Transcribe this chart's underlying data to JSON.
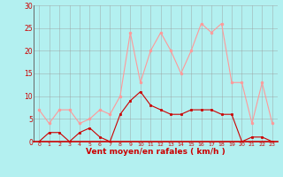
{
  "x": [
    0,
    1,
    2,
    3,
    4,
    5,
    6,
    7,
    8,
    9,
    10,
    11,
    12,
    13,
    14,
    15,
    16,
    17,
    18,
    19,
    20,
    21,
    22,
    23
  ],
  "avg_wind": [
    0,
    2,
    2,
    0,
    2,
    3,
    1,
    0,
    6,
    9,
    11,
    8,
    7,
    6,
    6,
    7,
    7,
    7,
    6,
    6,
    0,
    1,
    1,
    0
  ],
  "gust_wind": [
    7,
    4,
    7,
    7,
    4,
    5,
    7,
    6,
    10,
    24,
    13,
    20,
    24,
    20,
    15,
    20,
    26,
    24,
    26,
    13,
    13,
    4,
    13,
    4
  ],
  "avg_color": "#cc0000",
  "gust_color": "#ff9999",
  "bg_color": "#b3f0f0",
  "grid_color": "#999999",
  "xlabel": "Vent moyen/en rafales ( km/h )",
  "xlabel_color": "#cc0000",
  "tick_color": "#cc0000",
  "ylim": [
    0,
    30
  ],
  "yticks": [
    0,
    5,
    10,
    15,
    20,
    25,
    30
  ],
  "xticks": [
    0,
    1,
    2,
    3,
    4,
    5,
    6,
    7,
    8,
    9,
    10,
    11,
    12,
    13,
    14,
    15,
    16,
    17,
    18,
    19,
    20,
    21,
    22,
    23
  ]
}
